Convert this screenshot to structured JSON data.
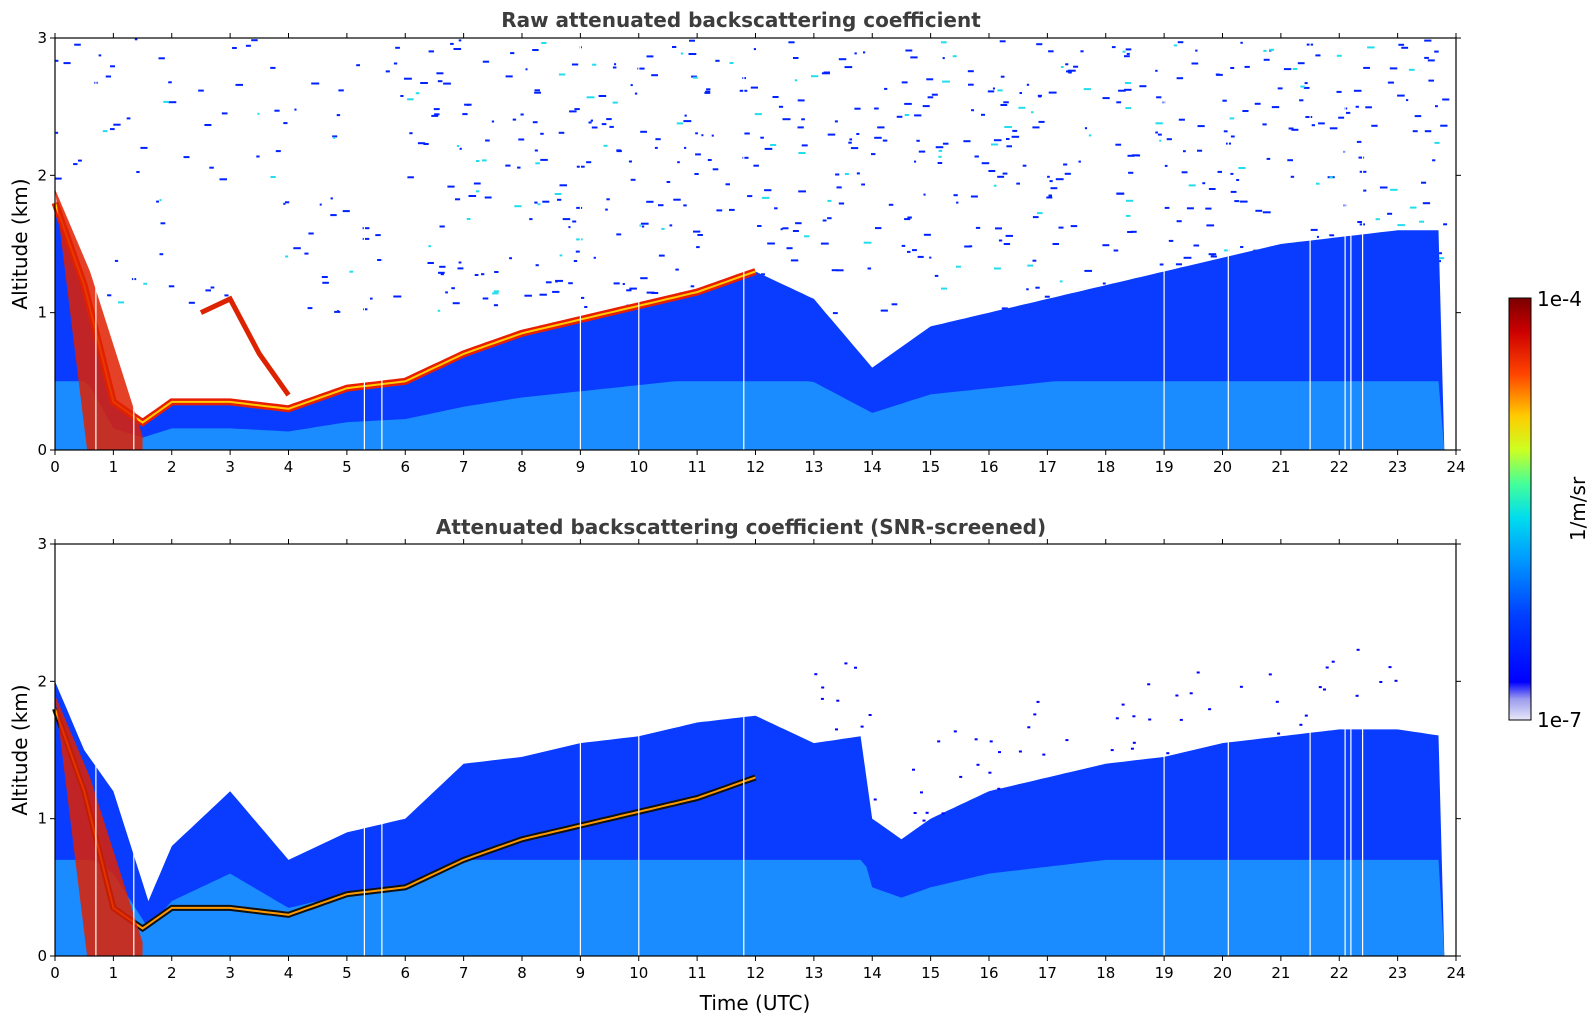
{
  "chart_data": [
    {
      "type": "heatmap",
      "title": "Raw attenuated backscattering coefficient",
      "xlabel": "",
      "ylabel": "Altitude (km)",
      "xlim": [
        0,
        24
      ],
      "ylim": [
        0,
        3
      ],
      "xticks": [
        "0",
        "1",
        "2",
        "3",
        "4",
        "5",
        "6",
        "7",
        "8",
        "9",
        "10",
        "11",
        "12",
        "13",
        "14",
        "15",
        "16",
        "17",
        "18",
        "19",
        "20",
        "21",
        "22",
        "23",
        "24"
      ],
      "yticks": [
        "0",
        "1",
        "2",
        "3"
      ],
      "data_end_time": 23.8,
      "features": {
        "boundary_layer_top_km": [
          [
            0,
            1.8
          ],
          [
            0.5,
            1.2
          ],
          [
            1,
            0.35
          ],
          [
            1.5,
            0.2
          ],
          [
            2,
            0.35
          ],
          [
            3,
            0.35
          ],
          [
            4,
            0.3
          ],
          [
            5,
            0.45
          ],
          [
            6,
            0.5
          ],
          [
            7,
            0.7
          ],
          [
            8,
            0.85
          ],
          [
            9,
            0.95
          ],
          [
            10,
            1.05
          ],
          [
            11,
            1.15
          ],
          [
            12,
            1.3
          ],
          [
            13,
            1.1
          ],
          [
            14,
            0.6
          ],
          [
            15,
            0.9
          ],
          [
            16,
            1.0
          ],
          [
            17,
            1.1
          ],
          [
            18,
            1.2
          ],
          [
            19,
            1.3
          ],
          [
            20,
            1.4
          ],
          [
            21,
            1.5
          ],
          [
            22,
            1.55
          ],
          [
            23,
            1.6
          ],
          [
            23.8,
            1.6
          ]
        ],
        "elevated_layer_km": [
          [
            2.5,
            1.0
          ],
          [
            3.0,
            1.1
          ],
          [
            3.5,
            0.7
          ],
          [
            4.0,
            0.4
          ]
        ],
        "data_gap_times": [
          0.7,
          1.35,
          5.3,
          5.6,
          9.0,
          10.0,
          11.8,
          19.0,
          20.1,
          21.5,
          22.1,
          22.2,
          22.4
        ]
      }
    },
    {
      "type": "heatmap",
      "title": "Attenuated backscattering coefficient (SNR-screened)",
      "xlabel": "Time (UTC)",
      "ylabel": "Altitude (km)",
      "xlim": [
        0,
        24
      ],
      "ylim": [
        0,
        3
      ],
      "xticks": [
        "0",
        "1",
        "2",
        "3",
        "4",
        "5",
        "6",
        "7",
        "8",
        "9",
        "10",
        "11",
        "12",
        "13",
        "14",
        "15",
        "16",
        "17",
        "18",
        "19",
        "20",
        "21",
        "22",
        "23",
        "24"
      ],
      "yticks": [
        "0",
        "1",
        "2",
        "3"
      ],
      "data_end_time": 23.8,
      "features": {
        "signal_top_km": [
          [
            0,
            2.0
          ],
          [
            0.5,
            1.5
          ],
          [
            1,
            1.2
          ],
          [
            1.6,
            0.4
          ],
          [
            2,
            0.8
          ],
          [
            3,
            1.2
          ],
          [
            4,
            0.7
          ],
          [
            5,
            0.9
          ],
          [
            6,
            1.0
          ],
          [
            7,
            1.4
          ],
          [
            8,
            1.45
          ],
          [
            9,
            1.55
          ],
          [
            10,
            1.6
          ],
          [
            11,
            1.7
          ],
          [
            12,
            1.75
          ],
          [
            13,
            1.55
          ],
          [
            13.8,
            1.6
          ],
          [
            14,
            1.0
          ],
          [
            14.5,
            0.85
          ],
          [
            15,
            1.0
          ],
          [
            16,
            1.2
          ],
          [
            17,
            1.3
          ],
          [
            18,
            1.4
          ],
          [
            19,
            1.45
          ],
          [
            20,
            1.55
          ],
          [
            21,
            1.6
          ],
          [
            22,
            1.65
          ],
          [
            23,
            1.65
          ],
          [
            23.8,
            1.6
          ]
        ],
        "data_gap_times": [
          0.7,
          1.35,
          5.3,
          5.6,
          9.0,
          10.0,
          11.8,
          19.0,
          20.1,
          21.5,
          22.1,
          22.2,
          22.4
        ]
      }
    }
  ],
  "colorbar": {
    "max_label": "1e-4",
    "min_label": "1e-7",
    "label": "1/m/sr",
    "scale": "log",
    "colormap": "jet",
    "stops": [
      "#ffffff",
      "#d8d8f0",
      "#0000ff",
      "#0066ff",
      "#00ccff",
      "#33ffcc",
      "#ccff33",
      "#ffcc00",
      "#ff3300",
      "#cc0000",
      "#800000"
    ]
  }
}
